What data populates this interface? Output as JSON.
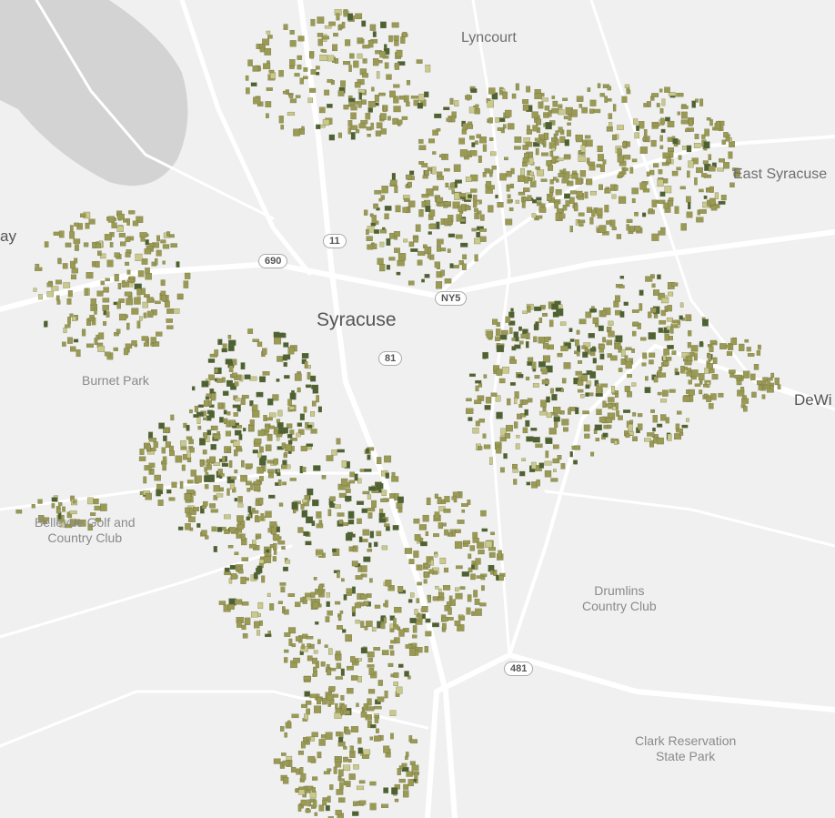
{
  "map": {
    "colors": {
      "background": "#f0f0f0",
      "water": "#d3d3d3",
      "road": "#ffffff",
      "parcel_light": "#c9c98d",
      "parcel_mid": "#9a9a55",
      "parcel_dark": "#4d6234"
    },
    "places": [
      {
        "id": "lyncourt",
        "label": "Lyncourt"
      },
      {
        "id": "east-syracuse",
        "label": "East Syracuse"
      },
      {
        "id": "solvay",
        "label": "ay"
      },
      {
        "id": "syracuse",
        "label": "Syracuse"
      },
      {
        "id": "dewitt",
        "label": "DeWi"
      }
    ],
    "pois": [
      {
        "id": "burnet-park",
        "label": "Burnet Park"
      },
      {
        "id": "bellevue",
        "label": "Bellevue Golf and\nCountry Club"
      },
      {
        "id": "drumlins",
        "label": "Drumlins\nCountry Club"
      },
      {
        "id": "clark",
        "label": "Clark Reservation\nState Park"
      }
    ],
    "shields": [
      "690",
      "11",
      "NY5",
      "81",
      "481"
    ]
  }
}
